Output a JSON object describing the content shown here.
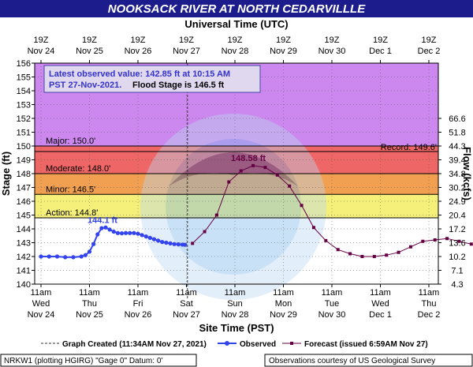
{
  "title": "NOOKSACK RIVER AT NORTH CEDARVILLLE",
  "top_axis_title": "Universal Time (UTC)",
  "bottom_axis_title": "Site Time (PST)",
  "left_axis_title": "Stage (ft)",
  "right_axis_title": "Flow (kcfs)",
  "info_box": {
    "line1": "Latest observed value: 142.85 ft at 10:15 AM",
    "line2a": "PST 27-Nov-2021.",
    "line2b": "Flood Stage is 146.5 ft"
  },
  "legend": {
    "graph_created": "Graph Created (11:34AM Nov 27, 2021)",
    "observed": "Observed",
    "forecast": "Forecast (issued 6:59AM Nov 27)"
  },
  "footer_left": "NRKW1 (plotting HGIRG) \"Gage 0\" Datum: 0'",
  "footer_right": "Observations courtesy of US Geological Survey",
  "colors": {
    "title_bar": "#1c1c8c",
    "major": "#cc88ee",
    "moderate": "#ee6666",
    "minor": "#f0a050",
    "action": "#f5f07a",
    "observed": "#3344ee",
    "forecast": "#660044",
    "record_line": "#000000"
  },
  "chart_data": {
    "type": "line",
    "ylim": [
      140,
      156
    ],
    "y_ticks": [
      140,
      141,
      142,
      143,
      144,
      145,
      146,
      147,
      148,
      149,
      150,
      151,
      152,
      153,
      154,
      155,
      156
    ],
    "flow_ticks": [
      {
        "stage": 140,
        "label": "4.3"
      },
      {
        "stage": 141,
        "label": "7.1"
      },
      {
        "stage": 142,
        "label": "10.2"
      },
      {
        "stage": 143,
        "label": "13.6"
      },
      {
        "stage": 144,
        "label": "17.2"
      },
      {
        "stage": 145,
        "label": "20.4"
      },
      {
        "stage": 146,
        "label": "24.9"
      },
      {
        "stage": 147,
        "label": "30.2"
      },
      {
        "stage": 148,
        "label": "34.8"
      },
      {
        "stage": 149,
        "label": "39.4"
      },
      {
        "stage": 150,
        "label": "44.3"
      },
      {
        "stage": 151,
        "label": "51.8"
      },
      {
        "stage": 152,
        "label": "66.6"
      }
    ],
    "flow_ticks_note": "",
    "x_range_hours": [
      0,
      216
    ],
    "x_unit": "hours after 11am Wed Nov 24 (PST)",
    "bottom_ticks": [
      {
        "h": 0,
        "l1": "11am",
        "l2": "Wed",
        "l3": "Nov 24"
      },
      {
        "h": 24,
        "l1": "11am",
        "l2": "Thu",
        "l3": "Nov 25"
      },
      {
        "h": 48,
        "l1": "11am",
        "l2": "Fri",
        "l3": "Nov 26"
      },
      {
        "h": 72,
        "l1": "11am",
        "l2": "Sat",
        "l3": "Nov 27"
      },
      {
        "h": 96,
        "l1": "11am",
        "l2": "Sun",
        "l3": "Nov 28"
      },
      {
        "h": 120,
        "l1": "11am",
        "l2": "Mon",
        "l3": "Nov 29"
      },
      {
        "h": 144,
        "l1": "11am",
        "l2": "Tue",
        "l3": "Nov 30"
      },
      {
        "h": 168,
        "l1": "11am",
        "l2": "Wed",
        "l3": "Dec 1"
      },
      {
        "h": 192,
        "l1": "11am",
        "l2": "Thu",
        "l3": "Dec 2"
      }
    ],
    "top_ticks": [
      {
        "h": 0,
        "l1": "19Z",
        "l2": "Nov 24"
      },
      {
        "h": 24,
        "l1": "19Z",
        "l2": "Nov 25"
      },
      {
        "h": 48,
        "l1": "19Z",
        "l2": "Nov 26"
      },
      {
        "h": 72,
        "l1": "19Z",
        "l2": "Nov 27"
      },
      {
        "h": 96,
        "l1": "19Z",
        "l2": "Nov 28"
      },
      {
        "h": 120,
        "l1": "19Z",
        "l2": "Nov 29"
      },
      {
        "h": 144,
        "l1": "19Z",
        "l2": "Nov 30"
      },
      {
        "h": 168,
        "l1": "19Z",
        "l2": "Dec 1"
      },
      {
        "h": 192,
        "l1": "19Z",
        "l2": "Dec 2"
      }
    ],
    "bands": [
      {
        "name": "Major",
        "from": 150,
        "to": 156,
        "label": "Major: 150.0'"
      },
      {
        "name": "Moderate",
        "from": 148,
        "to": 150,
        "label": "Moderate: 148.0'"
      },
      {
        "name": "Minor",
        "from": 146.5,
        "to": 148,
        "label": "Minor: 146.5'"
      },
      {
        "name": "Action",
        "from": 144.8,
        "to": 146.5,
        "label": "Action: 144.8'"
      }
    ],
    "record": {
      "stage": 149.6,
      "label": "Record: 149.6'"
    },
    "graph_created_h": 72.5,
    "observed": {
      "name": "Observed",
      "x": [
        0,
        4,
        8,
        12,
        16,
        20,
        22,
        24,
        26,
        28,
        30,
        32,
        34,
        36,
        38,
        40,
        42,
        44,
        46,
        48,
        50,
        52,
        54,
        56,
        58,
        60,
        62,
        64,
        66,
        68,
        70,
        71.25
      ],
      "y": [
        142.0,
        142.0,
        142.0,
        141.95,
        141.95,
        142.0,
        142.1,
        142.35,
        142.9,
        143.6,
        144.05,
        144.1,
        143.95,
        143.8,
        143.7,
        143.68,
        143.7,
        143.7,
        143.7,
        143.65,
        143.55,
        143.45,
        143.35,
        143.25,
        143.15,
        143.05,
        143.0,
        142.95,
        142.9,
        142.88,
        142.86,
        142.85
      ]
    },
    "forecast": {
      "name": "Forecast",
      "x": [
        75,
        81,
        87,
        93,
        99,
        105,
        111,
        117,
        123,
        129,
        135,
        141,
        147,
        153,
        159,
        165,
        171,
        177,
        183,
        189,
        195,
        201,
        207,
        213
      ],
      "y": [
        142.95,
        143.8,
        145.0,
        147.4,
        148.2,
        148.58,
        148.45,
        147.9,
        147.1,
        145.7,
        144.1,
        143.15,
        142.5,
        142.2,
        142.0,
        142.0,
        142.1,
        142.3,
        142.7,
        143.1,
        143.2,
        143.3,
        143.1,
        142.9
      ]
    },
    "crest_observed": {
      "x": 32,
      "y": 144.1,
      "label": "144.1 ft"
    },
    "crest_forecast": {
      "x": 105,
      "y": 148.58,
      "label": "148.58 ft"
    }
  }
}
